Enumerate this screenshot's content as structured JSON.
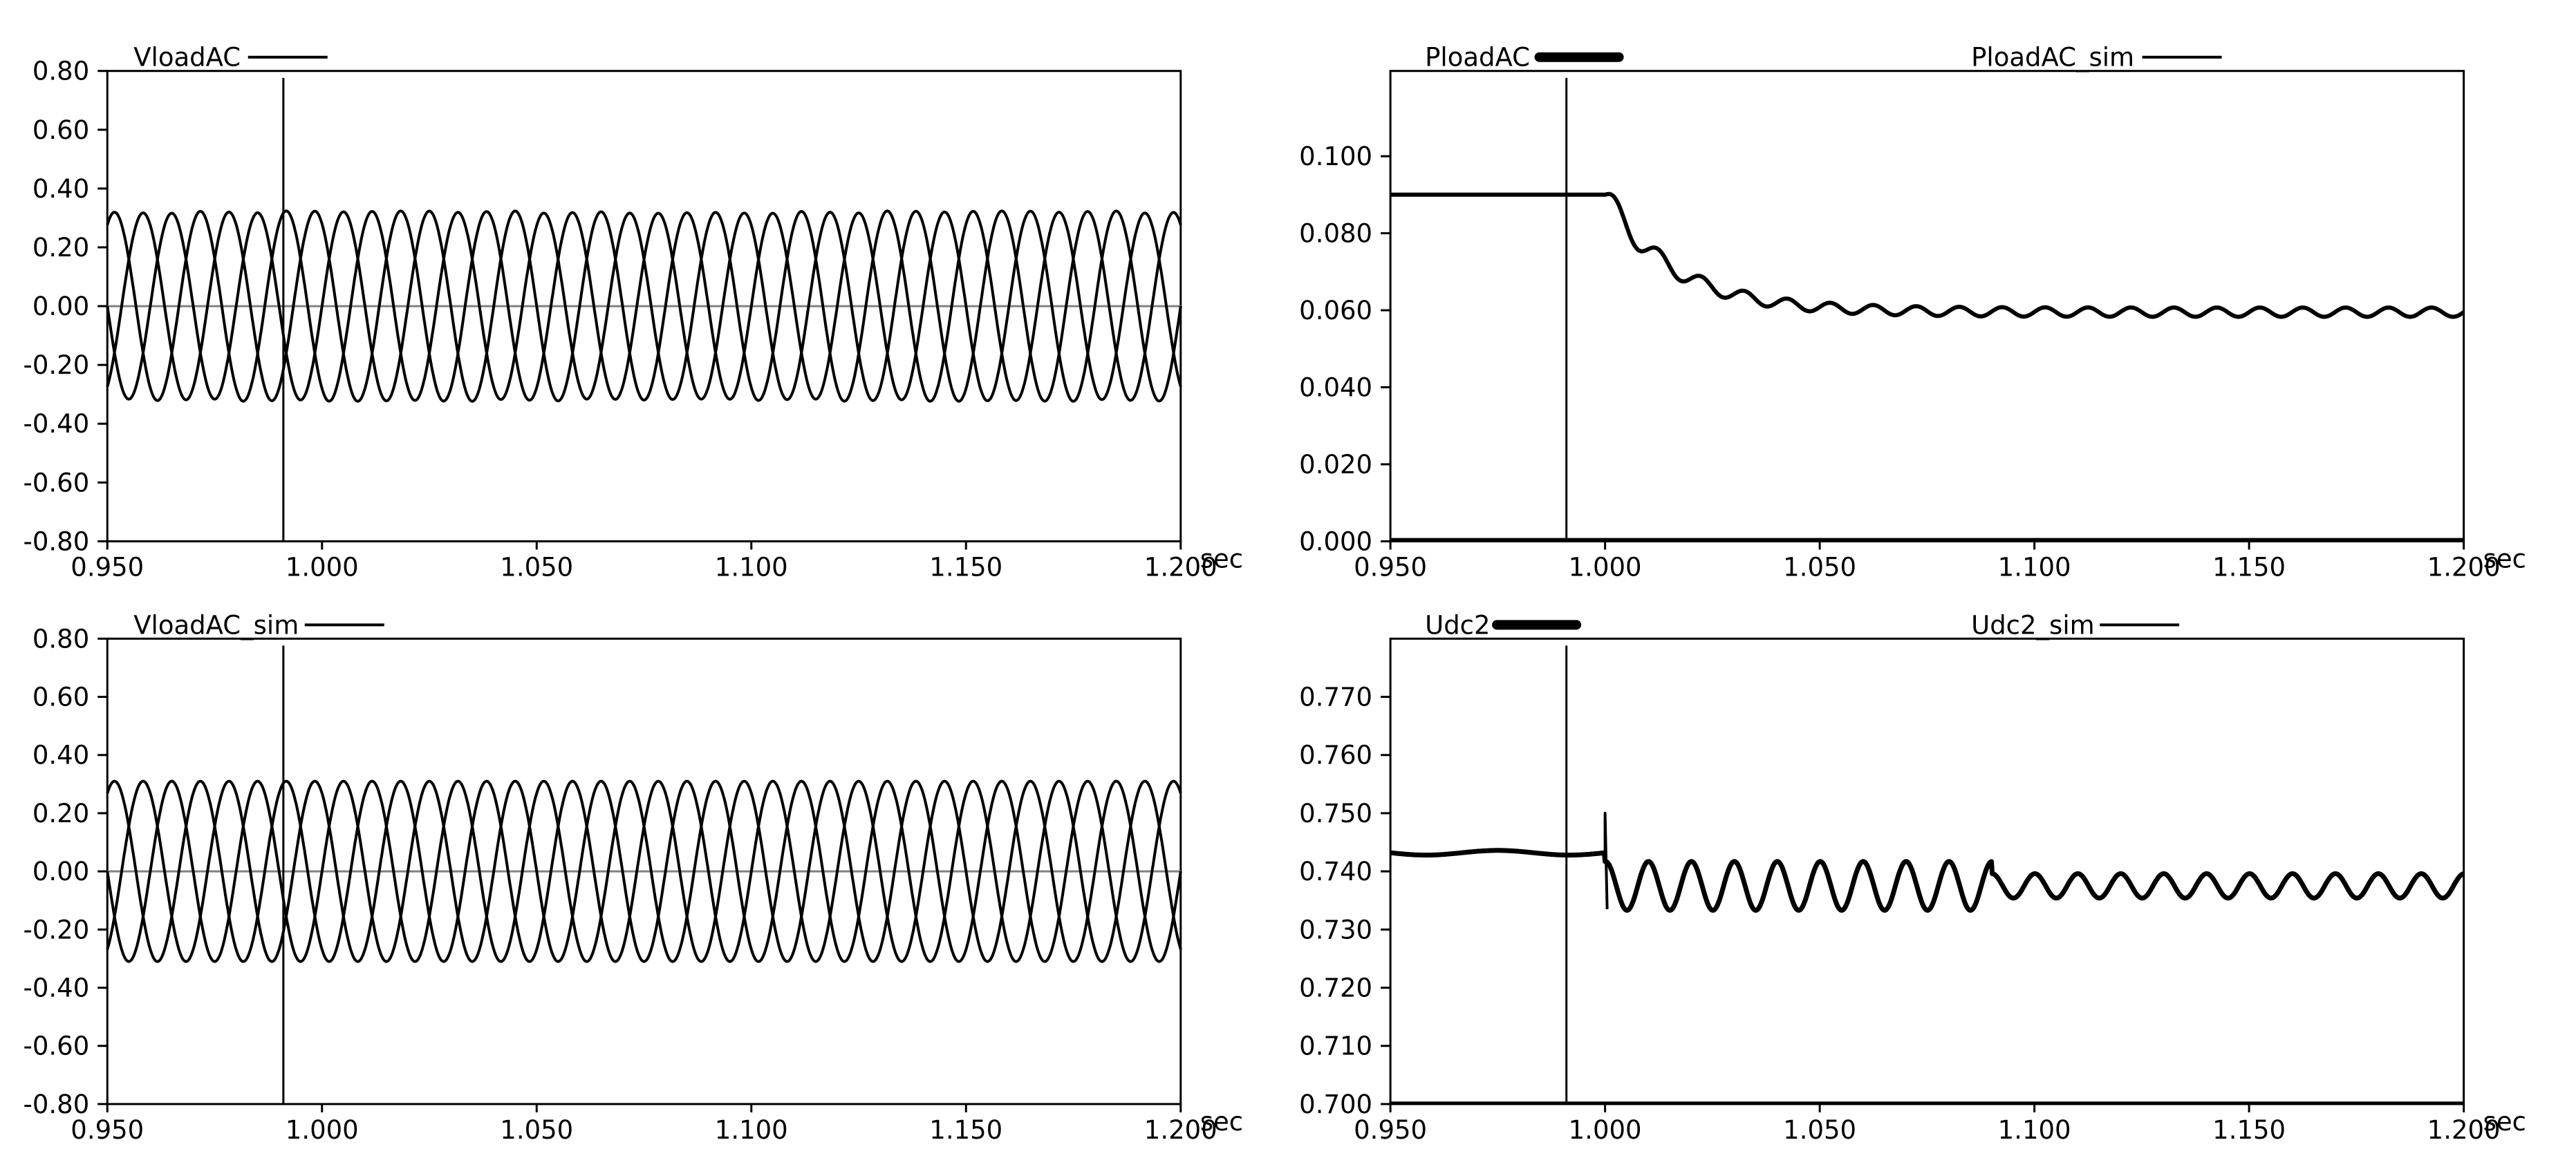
{
  "chart_data": [
    {
      "type": "line",
      "panel": "top-left",
      "xlabel": "sec",
      "xlim": [
        0.95,
        1.2
      ],
      "ylim": [
        -0.8,
        0.8
      ],
      "x_ticks": [
        "0.950",
        "1.000",
        "1.050",
        "1.100",
        "1.150",
        "1.200"
      ],
      "y_ticks": [
        "0.80",
        "0.60",
        "0.40",
        "0.20",
        "0.00",
        "-0.20",
        "-0.40",
        "-0.60",
        "-0.80"
      ],
      "cursor_x": 0.991,
      "grid": false,
      "zero_line": true,
      "legend": [
        {
          "name": "VloadAC",
          "thick": false
        }
      ],
      "series": [
        {
          "name": "VloadAC",
          "kind": "three-phase-sine",
          "frequency_hz": 50,
          "amplitude": 0.32,
          "phases_deg": [
            0,
            120,
            240
          ],
          "ripple": 0.012
        }
      ]
    },
    {
      "type": "line",
      "panel": "top-right",
      "xlabel": "sec",
      "xlim": [
        0.95,
        1.2
      ],
      "ylim": [
        0.0,
        0.12
      ],
      "x_ticks": [
        "0.950",
        "1.000",
        "1.050",
        "1.100",
        "1.150",
        "1.200"
      ],
      "y_ticks": [
        "0.100",
        "0.080",
        "0.060",
        "0.040",
        "0.020",
        "0.000"
      ],
      "cursor_x": 0.991,
      "grid": false,
      "zero_line": false,
      "legend": [
        {
          "name": "PloadAC",
          "thick": true
        },
        {
          "name": "PloadAC_sim",
          "thick": false
        }
      ],
      "series": [
        {
          "name": "PloadAC",
          "kind": "step-decay-ripple",
          "step_x": 1.0,
          "initial": 0.09,
          "final": 0.0595,
          "tau": 0.016,
          "ripple_amp": 0.002,
          "ripple_freq_hz": 100
        },
        {
          "name": "PloadAC_sim",
          "kind": "flat",
          "value": 0.0005
        }
      ]
    },
    {
      "type": "line",
      "panel": "bottom-left",
      "xlabel": "sec",
      "xlim": [
        0.95,
        1.2
      ],
      "ylim": [
        -0.8,
        0.8
      ],
      "x_ticks": [
        "0.950",
        "1.000",
        "1.050",
        "1.100",
        "1.150",
        "1.200"
      ],
      "y_ticks": [
        "0.80",
        "0.60",
        "0.40",
        "0.20",
        "0.00",
        "-0.20",
        "-0.40",
        "-0.60",
        "-0.80"
      ],
      "cursor_x": 0.991,
      "grid": false,
      "zero_line": true,
      "legend": [
        {
          "name": "VloadAC_sim",
          "thick": false
        }
      ],
      "series": [
        {
          "name": "VloadAC_sim",
          "kind": "three-phase-sine",
          "frequency_hz": 50,
          "amplitude": 0.31,
          "phases_deg": [
            0,
            120,
            240
          ],
          "ripple": 0.0
        }
      ]
    },
    {
      "type": "line",
      "panel": "bottom-right",
      "xlabel": "sec",
      "xlim": [
        0.95,
        1.2
      ],
      "ylim": [
        0.7,
        0.78
      ],
      "x_ticks": [
        "0.950",
        "1.000",
        "1.050",
        "1.100",
        "1.150",
        "1.200"
      ],
      "y_ticks": [
        "0.770",
        "0.760",
        "0.750",
        "0.740",
        "0.730",
        "0.720",
        "0.710",
        "0.700"
      ],
      "cursor_x": 0.991,
      "grid": false,
      "zero_line": false,
      "legend": [
        {
          "name": "Udc2",
          "thick": true
        },
        {
          "name": "Udc2_sim",
          "thick": false
        }
      ],
      "series": [
        {
          "name": "Udc2",
          "kind": "dc-ripple",
          "step_x": 1.0,
          "initial": 0.7432,
          "mean_after": 0.7375,
          "ripple_amp": 0.0035,
          "ripple_freq_hz": 100,
          "spike_peak": 0.75,
          "dip": 0.7335
        },
        {
          "name": "Udc2_sim",
          "kind": "flat",
          "value": 0.7002
        }
      ]
    }
  ]
}
